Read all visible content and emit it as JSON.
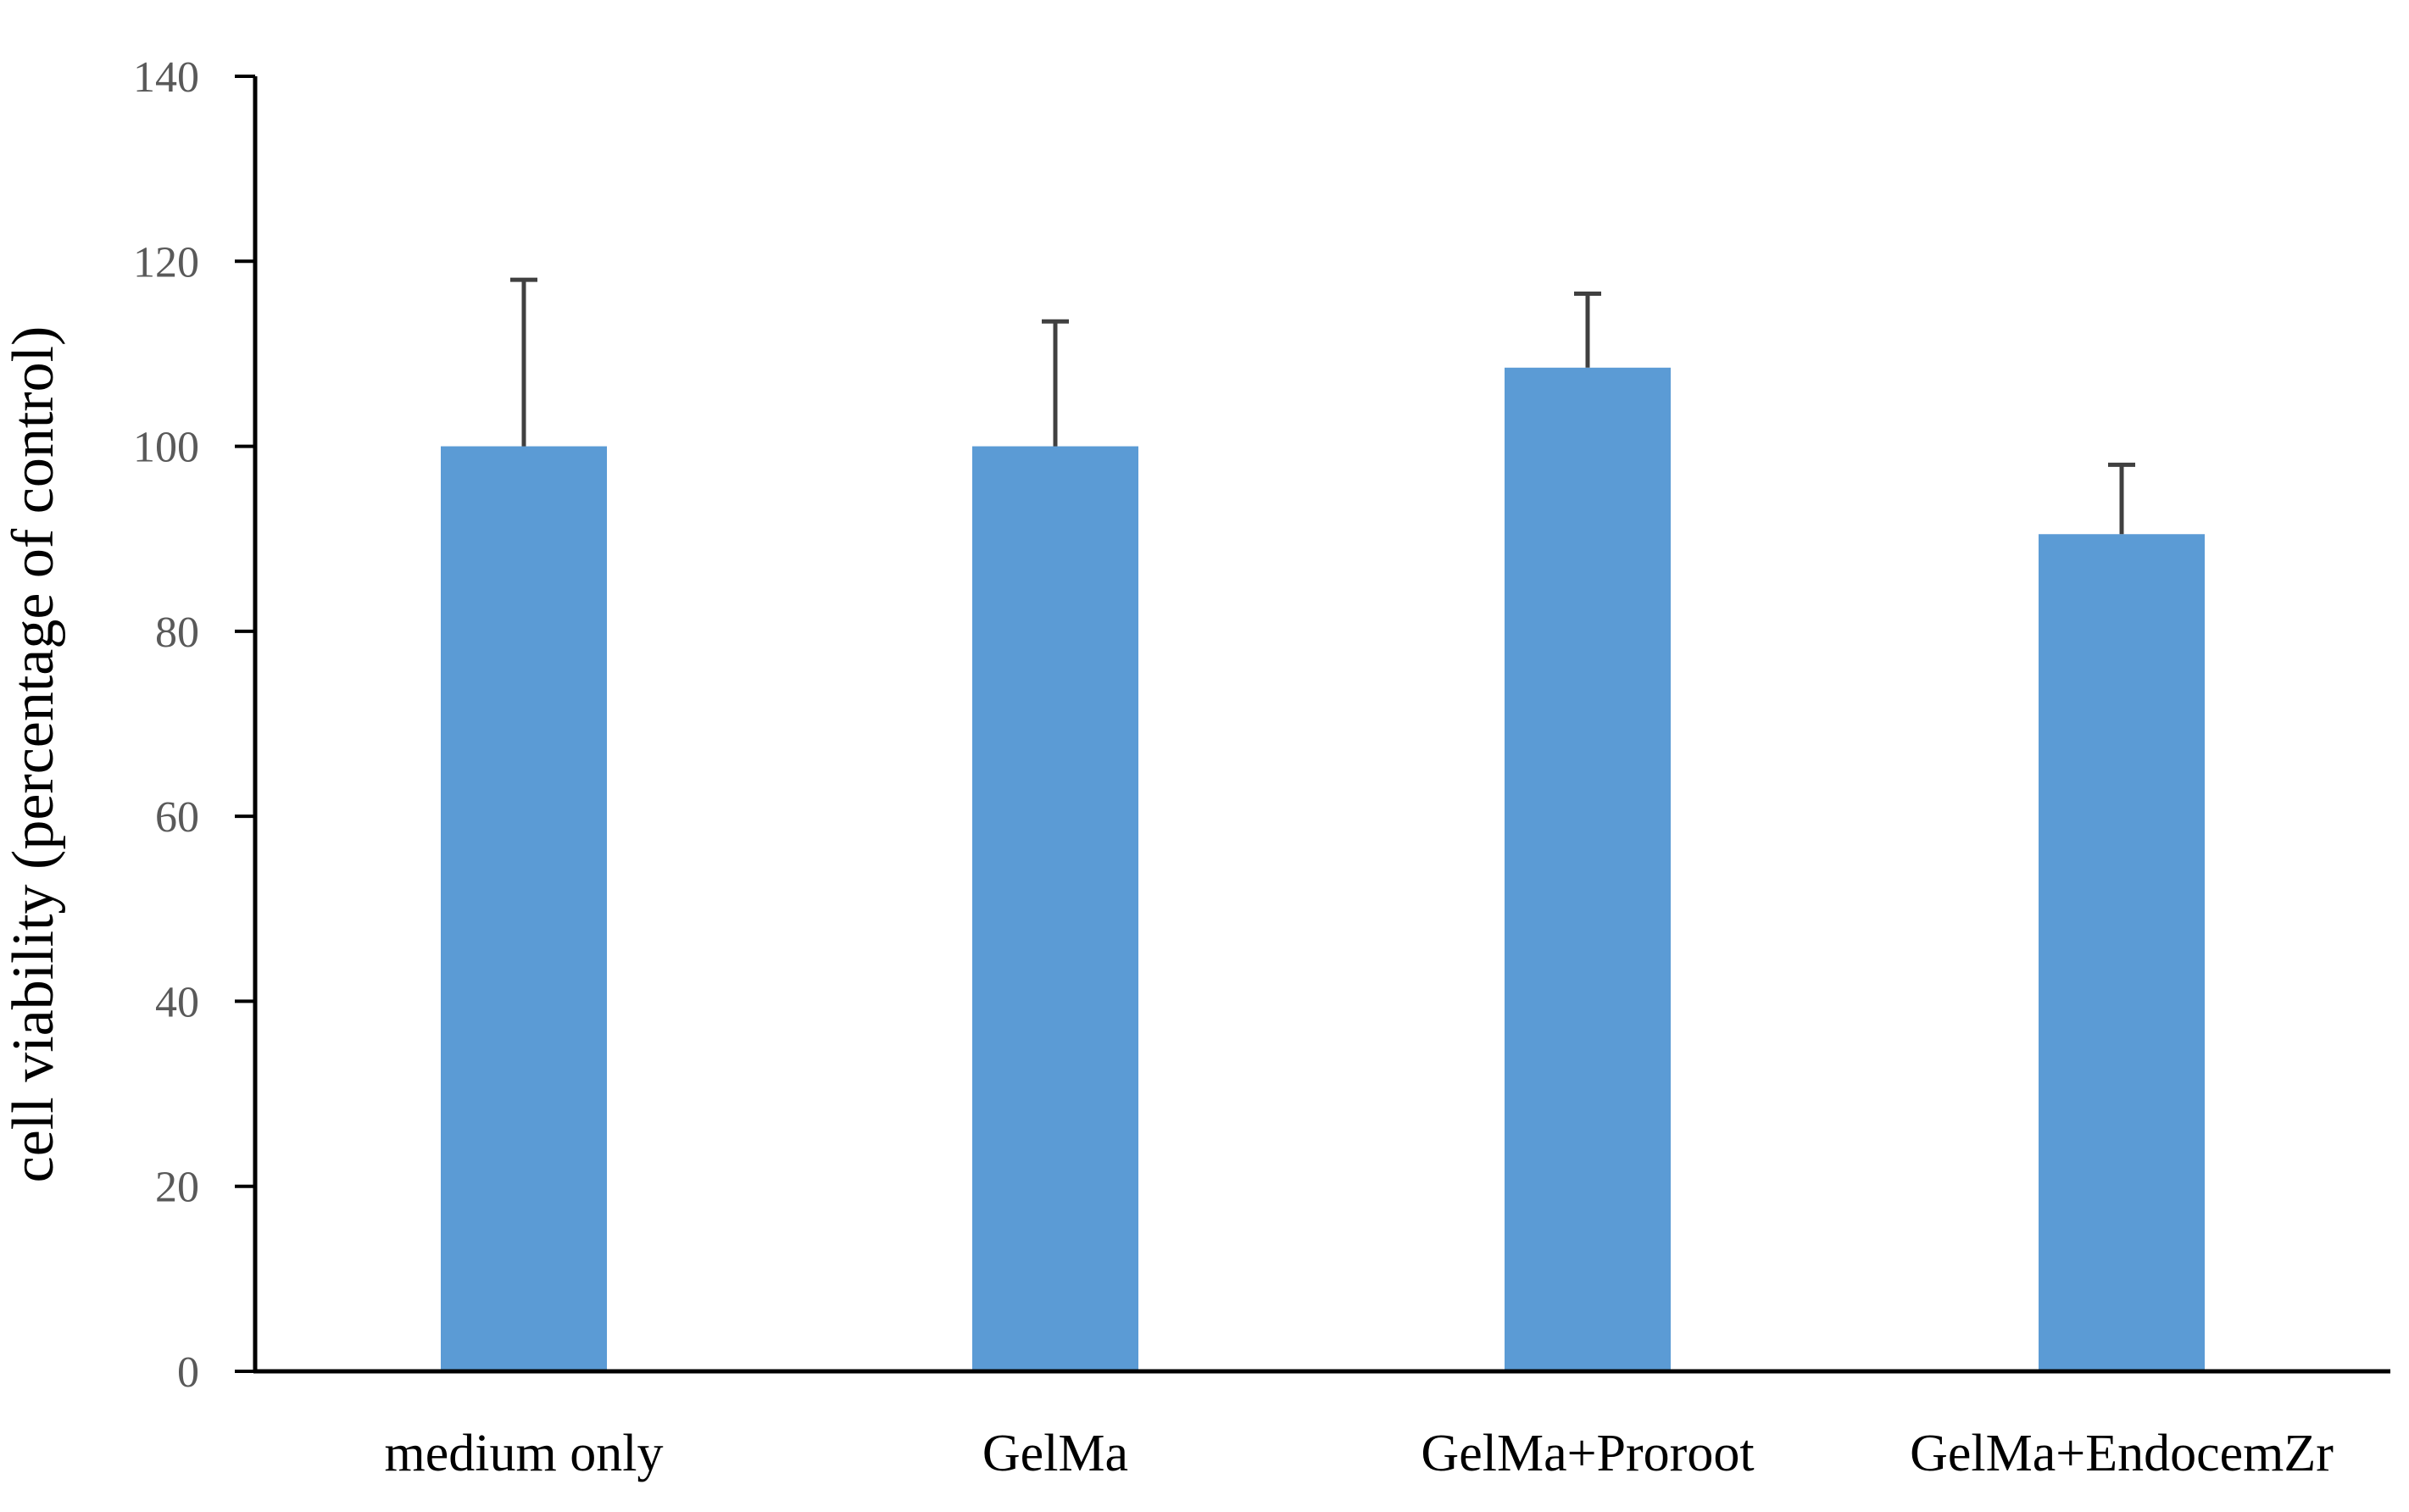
{
  "colors": {
    "bar": "#5b9bd5",
    "axis": "#000000",
    "error_bar": "#404040",
    "tick_text": "#595959"
  },
  "chart_data": {
    "type": "bar",
    "title": "",
    "xlabel": "",
    "ylabel": "cell viability (percentage of control)",
    "categories": [
      "medium only",
      "GelMa",
      "GelMa+Proroot",
      "GelMa+EndocemZr"
    ],
    "values": [
      100,
      100,
      108.5,
      90.5
    ],
    "error_upper": [
      118,
      113.5,
      116.5,
      98
    ],
    "ylim": [
      0,
      140
    ],
    "yticks": [
      "0",
      "20",
      "40",
      "60",
      "80",
      "100",
      "120",
      "140"
    ],
    "grid": false,
    "legend": "none"
  }
}
